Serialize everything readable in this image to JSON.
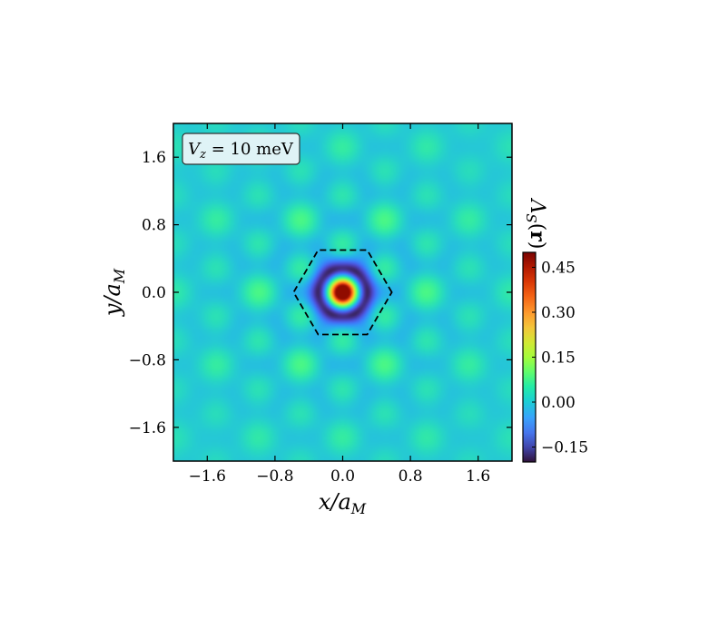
{
  "chart_data": {
    "type": "heatmap",
    "title": "",
    "xlabel": "x/a_M",
    "ylabel": "y/a_M",
    "xlim": [
      -2.0,
      2.0
    ],
    "ylim": [
      -2.0,
      2.0
    ],
    "x_ticks": [
      -1.6,
      -0.8,
      0.0,
      0.8,
      1.6
    ],
    "y_ticks": [
      -1.6,
      -0.8,
      0.0,
      0.8,
      1.6
    ],
    "x_tick_labels": [
      "−1.6",
      "−0.8",
      "0.0",
      "0.8",
      "1.6"
    ],
    "y_tick_labels": [
      "−1.6",
      "−0.8",
      "0.0",
      "0.8",
      "1.6"
    ],
    "annotation": "V_z = 10 meV",
    "colorbar": {
      "label": "Λ_S(r)",
      "range": [
        -0.2,
        0.5
      ],
      "ticks": [
        0.45,
        0.3,
        0.15,
        0.0,
        -0.15
      ],
      "tick_labels": [
        "0.45",
        "0.30",
        "0.15",
        "0.00",
        "−0.15"
      ],
      "colormap": "turbo"
    },
    "overlay": {
      "shape": "hexagon",
      "style": "dashed",
      "vertices": [
        [
          0.58,
          0.0
        ],
        [
          0.29,
          0.5
        ],
        [
          -0.29,
          0.5
        ],
        [
          -0.58,
          0.0
        ],
        [
          -0.29,
          -0.5
        ],
        [
          0.29,
          -0.5
        ]
      ]
    },
    "features": {
      "central_peak": {
        "x": 0.0,
        "y": 0.0,
        "value": 0.5,
        "width": 0.11
      },
      "first_ring": {
        "radius": 0.26,
        "value": -0.18
      },
      "background_value": 0.0,
      "oscillation_period": 0.5
    }
  },
  "colors": {
    "background_field": "#2fc0c4",
    "peak": "#7a0403",
    "box_face": "#dff3f6"
  }
}
